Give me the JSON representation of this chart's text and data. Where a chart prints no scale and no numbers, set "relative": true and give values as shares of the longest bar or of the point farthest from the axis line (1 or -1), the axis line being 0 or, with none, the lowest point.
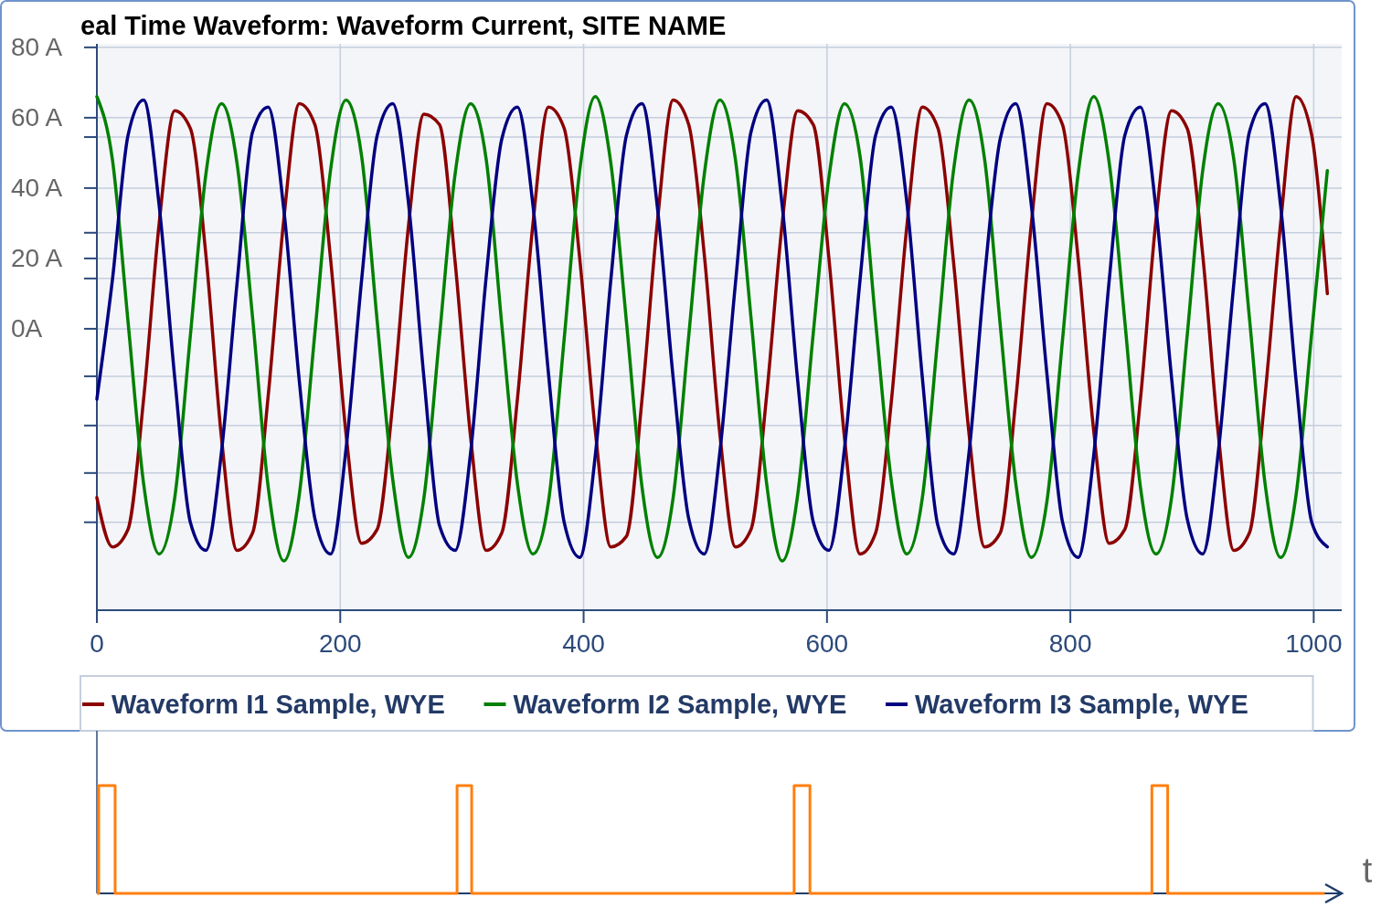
{
  "chart_data": [
    {
      "type": "line",
      "title": "eal Time Waveform: Waveform Current, SITE NAME",
      "x": [
        0,
        12.8,
        25.6,
        38.4,
        51.2,
        64,
        76.8,
        89.6,
        102.4,
        115.2,
        128,
        140.8,
        153.6,
        166.4,
        179.2,
        192,
        204.8,
        217.6,
        230.4,
        243.2,
        256,
        268.8,
        281.6,
        294.4,
        307.2,
        320,
        332.8,
        345.6,
        358.4,
        371.2,
        384,
        396.8,
        409.6,
        422.4,
        435.2,
        448,
        460.8,
        473.6,
        486.4,
        499.2,
        512,
        524.8,
        537.6,
        550.4,
        563.2,
        576,
        588.8,
        601.6,
        614.4,
        627.2,
        640,
        652.8,
        665.6,
        678.4,
        691.2,
        704,
        716.8,
        729.6,
        742.4,
        755.2,
        768,
        780.8,
        793.6,
        806.4,
        819.2,
        832,
        844.8,
        857.6,
        870.4,
        883.2,
        896,
        908.8,
        921.6,
        934.4,
        947.2,
        960,
        972.8,
        985.6,
        998.4,
        1011.2
      ],
      "series": [
        {
          "name": "Waveform I1 Sample, WYE",
          "color": "#8b0000",
          "values": [
            -48,
            -62,
            -57,
            -20,
            30,
            62,
            57,
            21,
            -31,
            -63,
            -58,
            -19,
            31,
            64,
            58,
            20,
            -30,
            -61,
            -57,
            -21,
            29,
            61,
            58,
            19,
            -31,
            -63,
            -58,
            -20,
            30,
            63,
            57,
            20,
            -29,
            -62,
            -59,
            -20,
            31,
            65,
            58,
            21,
            -30,
            -62,
            -57,
            -19,
            30,
            62,
            58,
            20,
            -31,
            -64,
            -58,
            -21,
            29,
            63,
            57,
            19,
            -30,
            -62,
            -58,
            -20,
            30,
            64,
            58,
            20,
            -29,
            -61,
            -57,
            -20,
            31,
            62,
            57,
            21,
            -30,
            -63,
            -58,
            -19,
            30,
            66,
            55,
            10
          ]
        },
        {
          "name": "Waveform I2 Sample, WYE",
          "color": "#008000",
          "values": [
            66,
            48,
            2,
            -44,
            -64,
            -48,
            -2,
            44,
            64,
            47,
            3,
            -45,
            -66,
            -47,
            -1,
            45,
            65,
            49,
            2,
            -43,
            -65,
            -48,
            -2,
            44,
            64,
            48,
            1,
            -44,
            -64,
            -49,
            -3,
            45,
            66,
            47,
            2,
            -45,
            -65,
            -48,
            -2,
            44,
            65,
            48,
            3,
            -44,
            -66,
            -47,
            -1,
            43,
            64,
            49,
            2,
            -43,
            -64,
            -48,
            -2,
            45,
            65,
            48,
            1,
            -44,
            -65,
            -49,
            -3,
            44,
            66,
            47,
            2,
            -45,
            -64,
            -48,
            -2,
            45,
            64,
            48,
            3,
            -44,
            -65,
            -47,
            -1,
            45
          ]
        },
        {
          "name": "Waveform I3 Sample, WYE",
          "color": "#000080",
          "values": [
            -20,
            14,
            55,
            65,
            35,
            -14,
            -55,
            -63,
            -35,
            13,
            56,
            63,
            34,
            -15,
            -54,
            -64,
            -34,
            14,
            55,
            64,
            36,
            -14,
            -56,
            -63,
            -35,
            15,
            54,
            63,
            35,
            -13,
            -55,
            -65,
            -36,
            14,
            55,
            64,
            34,
            -14,
            -54,
            -64,
            -35,
            13,
            56,
            65,
            35,
            -15,
            -55,
            -63,
            -34,
            14,
            55,
            63,
            36,
            -14,
            -56,
            -64,
            -35,
            15,
            54,
            64,
            35,
            -13,
            -55,
            -65,
            -36,
            14,
            55,
            63,
            34,
            -14,
            -54,
            -64,
            -35,
            13,
            56,
            64,
            35,
            -15,
            -55,
            -62
          ]
        }
      ],
      "xlim": [
        0,
        1023
      ],
      "xticks": [
        0,
        200,
        400,
        600,
        800,
        1000
      ],
      "ylim": [
        -80,
        81
      ],
      "yticks": [
        {
          "value": -55,
          "label": null
        },
        {
          "value": -41,
          "label": null
        },
        {
          "value": -27.5,
          "label": null
        },
        {
          "value": -13.5,
          "label": null
        },
        {
          "value": 0,
          "label": "0A"
        },
        {
          "value": 14.3,
          "label": null
        },
        {
          "value": 20,
          "label": "20 A"
        },
        {
          "value": 27.3,
          "label": null
        },
        {
          "value": 40,
          "label": "40 A"
        },
        {
          "value": 54.5,
          "label": null
        },
        {
          "value": 60,
          "label": "60 A"
        },
        {
          "value": 80,
          "label": "80 A"
        }
      ],
      "grid": true,
      "legend": "bottom"
    },
    {
      "type": "step",
      "relative": true,
      "xlabel": "t",
      "xlim": [
        0,
        1023
      ],
      "series": [
        {
          "color": "#ff7f0e",
          "x": [
            0,
            1.5,
            15,
            296,
            308,
            573,
            586,
            867,
            880,
            1009
          ],
          "values": [
            0,
            1,
            0,
            1,
            0,
            1,
            0,
            1,
            0,
            0
          ]
        }
      ]
    }
  ]
}
